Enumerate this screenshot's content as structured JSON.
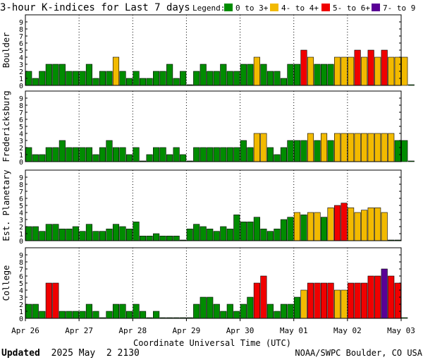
{
  "chart_data": {
    "type": "bar",
    "title": "3-hour K-indices for Last 7 days",
    "legend_label": "Legend:",
    "legend": [
      {
        "label": "0 to 3+",
        "color": "#008C00"
      },
      {
        "label": "4- to 4+",
        "color": "#F2BA00"
      },
      {
        "label": "5- to 6+",
        "color": "#F00000"
      },
      {
        "label": "7- to 9",
        "color": "#5A0096"
      }
    ],
    "xlabel": "Coordinate Universal Time (UTC)",
    "x_ticks": [
      "Apr 26",
      "Apr 27",
      "Apr 28",
      "Apr 29",
      "Apr 30",
      "May 01",
      "May 02",
      "May 03"
    ],
    "y_ticks": [
      "0",
      "1",
      "2",
      "3",
      "4",
      "5",
      "6",
      "7",
      "8",
      "9"
    ],
    "ylim": [
      0,
      9
    ],
    "bins_per_day": 8,
    "days": 7,
    "series": [
      {
        "name": "Boulder",
        "values": [
          2,
          1,
          2,
          3,
          3,
          3,
          2,
          2,
          2,
          3,
          1,
          2,
          2,
          4,
          2,
          1,
          2,
          1,
          1,
          2,
          2,
          3,
          1,
          2,
          0,
          2,
          3,
          2,
          2,
          3,
          2,
          2,
          3,
          3,
          4,
          3,
          2,
          2,
          1,
          3,
          3,
          5,
          4,
          3,
          3,
          3,
          4,
          4,
          4,
          5,
          4,
          5,
          4,
          5,
          4,
          4,
          4,
          0
        ]
      },
      {
        "name": "Fredericksburg",
        "values": [
          2,
          1,
          1,
          2,
          2,
          3,
          2,
          2,
          2,
          2,
          1,
          2,
          3,
          2,
          2,
          1,
          2,
          0,
          1,
          2,
          2,
          1,
          2,
          1,
          0,
          2,
          2,
          2,
          2,
          2,
          2,
          2,
          3,
          2,
          4,
          4,
          2,
          1,
          2,
          3,
          3,
          3,
          4,
          3,
          4,
          3,
          4,
          4,
          4,
          4,
          4,
          4,
          4,
          4,
          4,
          3,
          3,
          0
        ]
      },
      {
        "name": "Est. Planetary",
        "values": [
          2,
          2,
          1.33,
          2.33,
          2.33,
          1.67,
          1.67,
          2,
          1.33,
          2.33,
          1.33,
          1.33,
          1.67,
          2.33,
          2,
          1.67,
          2.67,
          0.67,
          0.67,
          1,
          0.67,
          0.67,
          0.67,
          0,
          1.67,
          2.33,
          2,
          1.67,
          1.33,
          2,
          1.67,
          3.67,
          2.67,
          2.67,
          3.33,
          1.67,
          1.33,
          1.67,
          3,
          3.33,
          4,
          3.67,
          4,
          4,
          3.33,
          4.67,
          5,
          5.33,
          4.67,
          4,
          4.33,
          4.67,
          4.67,
          4,
          0,
          0
        ]
      },
      {
        "name": "College",
        "values": [
          2,
          2,
          1,
          5,
          5,
          1,
          1,
          1,
          1,
          2,
          1,
          0,
          1,
          2,
          2,
          1,
          2,
          1,
          0,
          1,
          0,
          0,
          0,
          0,
          0,
          2,
          3,
          3,
          2,
          1,
          2,
          1,
          2,
          3,
          5,
          6,
          2,
          1,
          2,
          2,
          3,
          4,
          5,
          5,
          5,
          5,
          4,
          4,
          5,
          5,
          5,
          6,
          6,
          7,
          6,
          5,
          0
        ]
      }
    ]
  },
  "footer": {
    "updated_label": "Updated",
    "updated_value": "2025 May  2 2130",
    "credit": "NOAA/SWPC Boulder, CO USA"
  }
}
